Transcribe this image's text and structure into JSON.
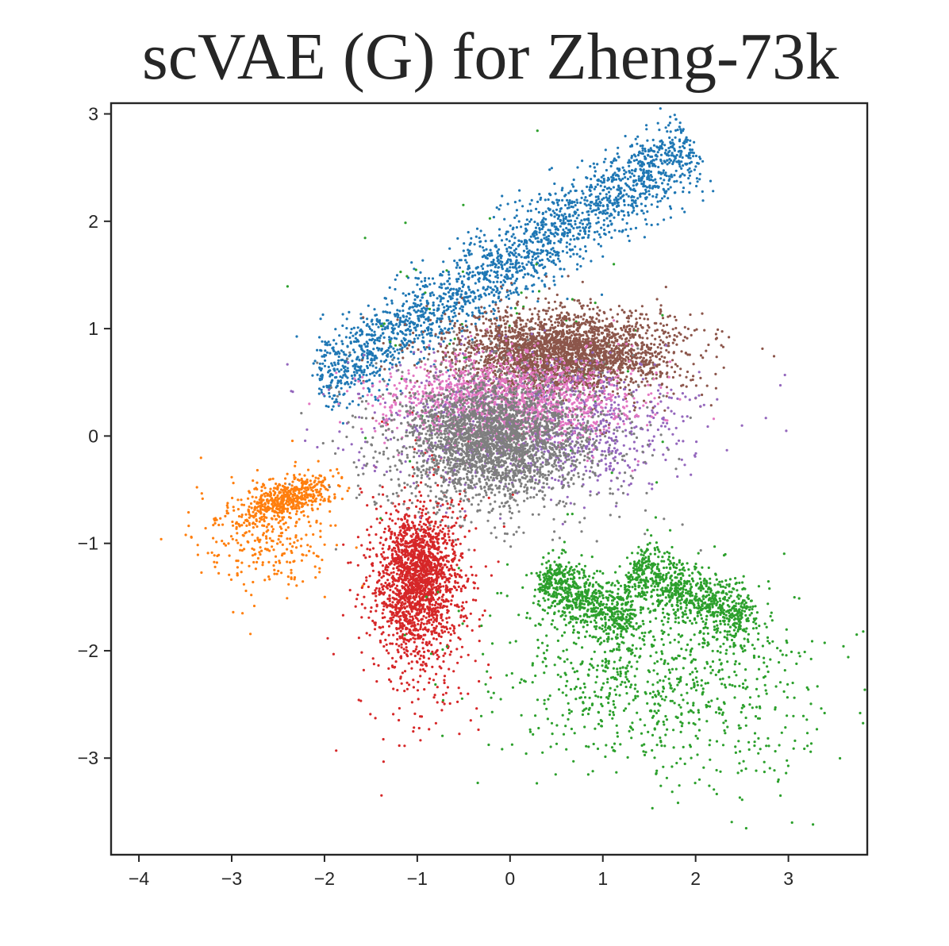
{
  "chart_data": {
    "type": "scatter",
    "title": "scVAE (G) for Zheng-73k",
    "xlabel": "",
    "ylabel": "",
    "xlim": [
      -4.3,
      3.85
    ],
    "ylim": [
      -3.9,
      3.1
    ],
    "x_ticks": [
      -4,
      -3,
      -2,
      -1,
      0,
      1,
      2,
      3
    ],
    "y_ticks": [
      -3,
      -2,
      -1,
      0,
      1,
      2,
      3
    ],
    "x_tick_labels": [
      "−4",
      "−3",
      "−2",
      "−1",
      "0",
      "1",
      "2",
      "3"
    ],
    "y_tick_labels": [
      "−3",
      "−2",
      "−1",
      "0",
      "1",
      "2",
      "3"
    ],
    "grid": false,
    "legend": "none",
    "colors": {
      "blue": "#1f77b4",
      "orange": "#ff7f0e",
      "green": "#2ca02c",
      "red": "#d62728",
      "purple": "#9467bd",
      "brown": "#8c564b",
      "pink": "#e377c2",
      "gray": "#7f7f7f"
    },
    "clusters": [
      {
        "color": "blue",
        "shape": "band",
        "x0": -2.05,
        "y0": 0.5,
        "x1": 1.95,
        "y1": 2.7,
        "width": 0.18,
        "count": 2200
      },
      {
        "color": "orange",
        "shape": "blob",
        "cx": -2.4,
        "cy": -0.58,
        "sx": 0.26,
        "sy": 0.09,
        "rot": 0.25,
        "count": 500
      },
      {
        "color": "orange",
        "shape": "blob",
        "cx": -2.65,
        "cy": -0.95,
        "sx": 0.38,
        "sy": 0.25,
        "rot": 0,
        "count": 280
      },
      {
        "color": "red",
        "shape": "blob",
        "cx": -1.0,
        "cy": -1.3,
        "sx": 0.2,
        "sy": 0.3,
        "rot": 0,
        "count": 1300
      },
      {
        "color": "red",
        "shape": "blob",
        "cx": -1.02,
        "cy": -1.5,
        "sx": 0.32,
        "sy": 0.55,
        "rot": 0,
        "count": 700
      },
      {
        "color": "green",
        "shape": "band",
        "x0": 0.35,
        "y0": -1.3,
        "x1": 1.3,
        "y1": -1.75,
        "width": 0.12,
        "count": 700
      },
      {
        "color": "green",
        "shape": "band",
        "x0": 1.3,
        "y0": -1.22,
        "x1": 2.55,
        "y1": -1.72,
        "width": 0.13,
        "count": 800
      },
      {
        "color": "green",
        "shape": "blob",
        "cx": 1.55,
        "cy": -2.15,
        "sx": 0.85,
        "sy": 0.45,
        "rot": 0,
        "count": 900
      },
      {
        "color": "green",
        "shape": "blob",
        "cx": 2.3,
        "cy": -2.9,
        "sx": 0.7,
        "sy": 0.3,
        "rot": 0,
        "count": 80
      },
      {
        "color": "green",
        "shape": "blob",
        "cx": 0.0,
        "cy": 0.9,
        "sx": 0.9,
        "sy": 0.75,
        "rot": 0,
        "count": 60
      },
      {
        "color": "brown",
        "shape": "blob",
        "cx": 0.55,
        "cy": 0.8,
        "sx": 0.55,
        "sy": 0.17,
        "rot": 0,
        "count": 2000
      },
      {
        "color": "brown",
        "shape": "blob",
        "cx": 0.6,
        "cy": 0.72,
        "sx": 0.75,
        "sy": 0.25,
        "rot": 0,
        "count": 800
      },
      {
        "color": "purple",
        "shape": "blob",
        "cx": 0.3,
        "cy": 0.1,
        "sx": 0.9,
        "sy": 0.3,
        "rot": 0,
        "count": 1000
      },
      {
        "color": "pink",
        "shape": "blob",
        "cx": 0.0,
        "cy": 0.33,
        "sx": 0.65,
        "sy": 0.2,
        "rot": 0,
        "count": 1400
      },
      {
        "color": "gray",
        "shape": "blob",
        "cx": -0.2,
        "cy": -0.02,
        "sx": 0.45,
        "sy": 0.27,
        "rot": 0,
        "count": 2100
      },
      {
        "color": "gray",
        "shape": "blob",
        "cx": -0.15,
        "cy": -0.1,
        "sx": 0.8,
        "sy": 0.38,
        "rot": 0,
        "count": 700
      }
    ]
  }
}
